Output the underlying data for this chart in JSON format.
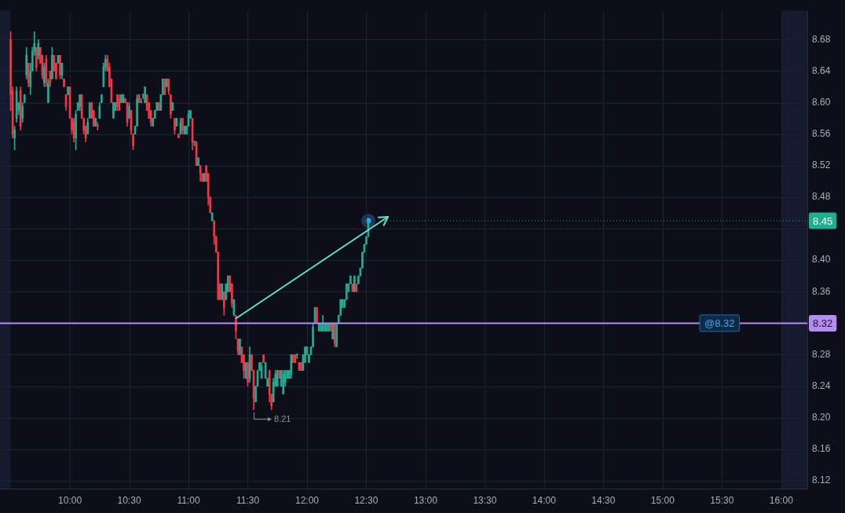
{
  "chart_data": {
    "type": "candlestick",
    "x": [
      9.5,
      9.5167,
      9.5333,
      9.55,
      9.5667,
      9.5833,
      9.6,
      9.6167,
      9.6333,
      9.65,
      9.6667,
      9.6833,
      9.7,
      9.7167,
      9.7333,
      9.75,
      9.7667,
      9.7833,
      9.8,
      9.8167,
      9.8333,
      9.85,
      9.8667,
      9.8833,
      9.9,
      9.9167,
      9.9333,
      9.95,
      9.9667,
      9.9833,
      10,
      10.0167,
      10.0333,
      10.05,
      10.0667,
      10.0833,
      10.1,
      10.1167,
      10.1333,
      10.15,
      10.1667,
      10.1833,
      10.2,
      10.2167,
      10.2333,
      10.25,
      10.2667,
      10.2833,
      10.3,
      10.3167,
      10.3333,
      10.35,
      10.3667,
      10.3833,
      10.4,
      10.4167,
      10.4333,
      10.45,
      10.4667,
      10.4833,
      10.5,
      10.5167,
      10.5333,
      10.55,
      10.5667,
      10.5833,
      10.6,
      10.6167,
      10.6333,
      10.65,
      10.6667,
      10.6833,
      10.7,
      10.7167,
      10.7333,
      10.75,
      10.7667,
      10.7833,
      10.8,
      10.8167,
      10.8333,
      10.85,
      10.8667,
      10.8833,
      10.9,
      10.9167,
      10.9333,
      10.95,
      10.9667,
      10.9833,
      11,
      11.0167,
      11.0333,
      11.05,
      11.0667,
      11.0833,
      11.1,
      11.1167,
      11.1333,
      11.15,
      11.1667,
      11.1833,
      11.2,
      11.2167,
      11.2333,
      11.25,
      11.2667,
      11.2833,
      11.3,
      11.3167,
      11.3333,
      11.35,
      11.3667,
      11.3833,
      11.4,
      11.4167,
      11.4333,
      11.45,
      11.4667,
      11.4833,
      11.5,
      11.5167,
      11.5333,
      11.55,
      11.5667,
      11.5833,
      11.6,
      11.6167,
      11.6333,
      11.65,
      11.6667,
      11.6833,
      11.7,
      11.7167,
      11.7333,
      11.75,
      11.7667,
      11.7833,
      11.8,
      11.8167,
      11.8333,
      11.85,
      11.8667,
      11.8833,
      11.9,
      11.9167,
      11.9333,
      11.95,
      11.9667,
      11.9833,
      12,
      12.0167,
      12.0333,
      12.05,
      12.0667,
      12.0833,
      12.1,
      12.1167,
      12.1333,
      12.15,
      12.1667,
      12.1833,
      12.2,
      12.2167,
      12.2333,
      12.25,
      12.2667,
      12.2833,
      12.3,
      12.3167,
      12.3333,
      12.35,
      12.3667,
      12.3833,
      12.4,
      12.4167,
      12.4333,
      12.45,
      12.4667,
      12.4833,
      12.5,
      12.5167
    ],
    "ohlc": [
      [
        8.68,
        8.69,
        8.59,
        8.61
      ],
      [
        8.615,
        8.62,
        8.555,
        8.56
      ],
      [
        8.555,
        8.57,
        8.54,
        8.565
      ],
      [
        8.58,
        8.62,
        8.575,
        8.615
      ],
      [
        8.59,
        8.6,
        8.585,
        8.6
      ],
      [
        8.615,
        8.62,
        8.565,
        8.57
      ],
      [
        8.58,
        8.6,
        8.575,
        8.595
      ],
      [
        8.6,
        8.61,
        8.6,
        8.61
      ],
      [
        8.635,
        8.67,
        8.63,
        8.66
      ],
      [
        8.65,
        8.65,
        8.62,
        8.625
      ],
      [
        8.62,
        8.65,
        8.61,
        8.64
      ],
      [
        8.64,
        8.67,
        8.64,
        8.665
      ],
      [
        8.665,
        8.69,
        8.66,
        8.675
      ],
      [
        8.67,
        8.67,
        8.64,
        8.645
      ],
      [
        8.66,
        8.68,
        8.655,
        8.675
      ],
      [
        8.67,
        8.67,
        8.65,
        8.65
      ],
      [
        8.66,
        8.66,
        8.63,
        8.635
      ],
      [
        8.625,
        8.65,
        8.62,
        8.645
      ],
      [
        8.655,
        8.66,
        8.62,
        8.625
      ],
      [
        8.6,
        8.63,
        8.6,
        8.625
      ],
      [
        8.64,
        8.64,
        8.62,
        8.625
      ],
      [
        8.63,
        8.67,
        8.63,
        8.66
      ],
      [
        8.66,
        8.66,
        8.64,
        8.64
      ],
      [
        8.65,
        8.65,
        8.63,
        8.63
      ],
      [
        8.65,
        8.66,
        8.65,
        8.66
      ],
      [
        8.66,
        8.66,
        8.63,
        8.635
      ],
      [
        8.635,
        8.65,
        8.63,
        8.65
      ],
      [
        8.63,
        8.63,
        8.62,
        8.62
      ],
      [
        8.61,
        8.61,
        8.59,
        8.595
      ],
      [
        8.61,
        8.62,
        8.61,
        8.62
      ],
      [
        8.62,
        8.62,
        8.58,
        8.58
      ],
      [
        8.58,
        8.58,
        8.56,
        8.565
      ],
      [
        8.575,
        8.58,
        8.55,
        8.555
      ],
      [
        8.555,
        8.59,
        8.54,
        8.585
      ],
      [
        8.59,
        8.6,
        8.59,
        8.6
      ],
      [
        8.595,
        8.61,
        8.59,
        8.61
      ],
      [
        8.61,
        8.61,
        8.58,
        8.58
      ],
      [
        8.58,
        8.58,
        8.56,
        8.565
      ],
      [
        8.57,
        8.57,
        8.55,
        8.555
      ],
      [
        8.56,
        8.58,
        8.56,
        8.575
      ],
      [
        8.58,
        8.6,
        8.58,
        8.6
      ],
      [
        8.6,
        8.6,
        8.58,
        8.58
      ],
      [
        8.59,
        8.59,
        8.57,
        8.57
      ],
      [
        8.57,
        8.58,
        8.57,
        8.58
      ],
      [
        8.57,
        8.575,
        8.565,
        8.57
      ],
      [
        8.58,
        8.6,
        8.58,
        8.595
      ],
      [
        8.6,
        8.61,
        8.6,
        8.61
      ],
      [
        8.62,
        8.65,
        8.62,
        8.645
      ],
      [
        8.645,
        8.66,
        8.64,
        8.655
      ],
      [
        8.655,
        8.66,
        8.64,
        8.64
      ],
      [
        8.645,
        8.65,
        8.62,
        8.62
      ],
      [
        8.63,
        8.63,
        8.6,
        8.6
      ],
      [
        8.58,
        8.6,
        8.58,
        8.6
      ],
      [
        8.59,
        8.6,
        8.59,
        8.6
      ],
      [
        8.61,
        8.61,
        8.59,
        8.595
      ],
      [
        8.605,
        8.61,
        8.59,
        8.59
      ],
      [
        8.6,
        8.61,
        8.6,
        8.61
      ],
      [
        8.6,
        8.61,
        8.6,
        8.61
      ],
      [
        8.605,
        8.605,
        8.6,
        8.6
      ],
      [
        8.6,
        8.6,
        8.57,
        8.575
      ],
      [
        8.58,
        8.6,
        8.58,
        8.595
      ],
      [
        8.59,
        8.59,
        8.56,
        8.565
      ],
      [
        8.56,
        8.56,
        8.54,
        8.545
      ],
      [
        8.56,
        8.57,
        8.56,
        8.57
      ],
      [
        8.57,
        8.61,
        8.57,
        8.605
      ],
      [
        8.61,
        8.61,
        8.6,
        8.6
      ],
      [
        8.6,
        8.605,
        8.6,
        8.6
      ],
      [
        8.61,
        8.61,
        8.605,
        8.61
      ],
      [
        8.6,
        8.62,
        8.6,
        8.62
      ],
      [
        8.61,
        8.61,
        8.59,
        8.59
      ],
      [
        8.6,
        8.6,
        8.58,
        8.58
      ],
      [
        8.59,
        8.59,
        8.57,
        8.575
      ],
      [
        8.57,
        8.58,
        8.57,
        8.58
      ],
      [
        8.58,
        8.59,
        8.58,
        8.59
      ],
      [
        8.59,
        8.6,
        8.59,
        8.6
      ],
      [
        8.6,
        8.6,
        8.59,
        8.59
      ],
      [
        8.59,
        8.61,
        8.59,
        8.61
      ],
      [
        8.61,
        8.63,
        8.61,
        8.63
      ],
      [
        8.63,
        8.63,
        8.61,
        8.61
      ],
      [
        8.62,
        8.63,
        8.62,
        8.63
      ],
      [
        8.63,
        8.63,
        8.61,
        8.615
      ],
      [
        8.61,
        8.61,
        8.58,
        8.585
      ],
      [
        8.59,
        8.6,
        8.59,
        8.6
      ],
      [
        8.58,
        8.58,
        8.56,
        8.565
      ],
      [
        8.57,
        8.58,
        8.57,
        8.58
      ],
      [
        8.56,
        8.56,
        8.555,
        8.555
      ],
      [
        8.56,
        8.58,
        8.56,
        8.575
      ],
      [
        8.58,
        8.58,
        8.56,
        8.565
      ],
      [
        8.56,
        8.57,
        8.56,
        8.57
      ],
      [
        8.56,
        8.57,
        8.56,
        8.57
      ],
      [
        8.57,
        8.59,
        8.57,
        8.585
      ],
      [
        8.58,
        8.59,
        8.58,
        8.59
      ],
      [
        8.58,
        8.58,
        8.54,
        8.55
      ],
      [
        8.55,
        8.55,
        8.545,
        8.55
      ],
      [
        8.55,
        8.55,
        8.52,
        8.52
      ],
      [
        8.52,
        8.53,
        8.52,
        8.53
      ],
      [
        8.52,
        8.52,
        8.5,
        8.51
      ],
      [
        8.51,
        8.51,
        8.5,
        8.5
      ],
      [
        8.5,
        8.51,
        8.5,
        8.51
      ],
      [
        8.52,
        8.52,
        8.5,
        8.5
      ],
      [
        8.51,
        8.51,
        8.47,
        8.48
      ],
      [
        8.48,
        8.48,
        8.46,
        8.46
      ],
      [
        8.45,
        8.46,
        8.45,
        8.46
      ],
      [
        8.45,
        8.45,
        8.42,
        8.43
      ],
      [
        8.43,
        8.43,
        8.41,
        8.41
      ],
      [
        8.41,
        8.41,
        8.35,
        8.35
      ],
      [
        8.37,
        8.37,
        8.35,
        8.35
      ],
      [
        8.35,
        8.37,
        8.35,
        8.37
      ],
      [
        8.36,
        8.36,
        8.33,
        8.34
      ],
      [
        8.35,
        8.37,
        8.35,
        8.37
      ],
      [
        8.36,
        8.38,
        8.36,
        8.38
      ],
      [
        8.38,
        8.38,
        8.36,
        8.36
      ],
      [
        8.37,
        8.37,
        8.34,
        8.345
      ],
      [
        8.33,
        8.35,
        8.33,
        8.35
      ],
      [
        8.33,
        8.33,
        8.3,
        8.31
      ],
      [
        8.3,
        8.3,
        8.28,
        8.285
      ],
      [
        8.28,
        8.3,
        8.28,
        8.3
      ],
      [
        8.29,
        8.29,
        8.27,
        8.27
      ],
      [
        8.28,
        8.28,
        8.25,
        8.26
      ],
      [
        8.25,
        8.27,
        8.25,
        8.27
      ],
      [
        8.27,
        8.27,
        8.24,
        8.245
      ],
      [
        8.25,
        8.29,
        8.245,
        8.28
      ],
      [
        8.28,
        8.28,
        8.26,
        8.26
      ],
      [
        8.26,
        8.26,
        8.21,
        8.225
      ],
      [
        8.22,
        8.24,
        8.22,
        8.24
      ],
      [
        8.24,
        8.26,
        8.24,
        8.26
      ],
      [
        8.26,
        8.27,
        8.26,
        8.27
      ],
      [
        8.25,
        8.27,
        8.25,
        8.265
      ],
      [
        8.28,
        8.28,
        8.27,
        8.27
      ],
      [
        8.25,
        8.27,
        8.25,
        8.27
      ],
      [
        8.24,
        8.25,
        8.24,
        8.25
      ],
      [
        8.26,
        8.26,
        8.22,
        8.23
      ],
      [
        8.23,
        8.23,
        8.21,
        8.215
      ],
      [
        8.22,
        8.25,
        8.22,
        8.245
      ],
      [
        8.24,
        8.26,
        8.24,
        8.255
      ],
      [
        8.24,
        8.26,
        8.24,
        8.26
      ],
      [
        8.26,
        8.26,
        8.25,
        8.25
      ],
      [
        8.24,
        8.26,
        8.24,
        8.26
      ],
      [
        8.23,
        8.26,
        8.23,
        8.255
      ],
      [
        8.245,
        8.26,
        8.24,
        8.26
      ],
      [
        8.25,
        8.26,
        8.25,
        8.26
      ],
      [
        8.25,
        8.26,
        8.25,
        8.26
      ],
      [
        8.255,
        8.28,
        8.25,
        8.28
      ],
      [
        8.28,
        8.28,
        8.27,
        8.27
      ],
      [
        8.28,
        8.28,
        8.27,
        8.27
      ],
      [
        8.28,
        8.28,
        8.275,
        8.28
      ],
      [
        8.27,
        8.27,
        8.26,
        8.26
      ],
      [
        8.27,
        8.27,
        8.26,
        8.26
      ],
      [
        8.26,
        8.28,
        8.26,
        8.28
      ],
      [
        8.27,
        8.29,
        8.27,
        8.29
      ],
      [
        8.28,
        8.29,
        8.28,
        8.29
      ],
      [
        8.27,
        8.28,
        8.27,
        8.28
      ],
      [
        8.28,
        8.29,
        8.28,
        8.29
      ],
      [
        8.29,
        8.32,
        8.29,
        8.315
      ],
      [
        8.32,
        8.34,
        8.32,
        8.34
      ],
      [
        8.34,
        8.34,
        8.32,
        8.32
      ],
      [
        8.31,
        8.32,
        8.31,
        8.32
      ],
      [
        8.31,
        8.32,
        8.31,
        8.32
      ],
      [
        8.31,
        8.33,
        8.31,
        8.32
      ],
      [
        8.31,
        8.32,
        8.31,
        8.32
      ],
      [
        8.31,
        8.32,
        8.31,
        8.32
      ],
      [
        8.31,
        8.32,
        8.31,
        8.32
      ],
      [
        8.32,
        8.32,
        8.31,
        8.31
      ],
      [
        8.3,
        8.32,
        8.3,
        8.32
      ],
      [
        8.32,
        8.32,
        8.29,
        8.295
      ],
      [
        8.29,
        8.32,
        8.29,
        8.32
      ],
      [
        8.32,
        8.33,
        8.32,
        8.33
      ],
      [
        8.33,
        8.35,
        8.33,
        8.35
      ],
      [
        8.34,
        8.35,
        8.34,
        8.35
      ],
      [
        8.34,
        8.35,
        8.34,
        8.35
      ],
      [
        8.35,
        8.37,
        8.35,
        8.37
      ],
      [
        8.36,
        8.37,
        8.36,
        8.37
      ],
      [
        8.37,
        8.38,
        8.37,
        8.38
      ],
      [
        8.37,
        8.37,
        8.36,
        8.36
      ],
      [
        8.36,
        8.38,
        8.36,
        8.38
      ],
      [
        8.37,
        8.37,
        8.36,
        8.36
      ],
      [
        8.37,
        8.38,
        8.37,
        8.38
      ],
      [
        8.38,
        8.39,
        8.38,
        8.39
      ],
      [
        8.39,
        8.41,
        8.39,
        8.41
      ],
      [
        8.41,
        8.42,
        8.41,
        8.42
      ],
      [
        8.42,
        8.43,
        8.42,
        8.43
      ],
      [
        8.43,
        8.45,
        8.43,
        8.45
      ]
    ],
    "colors": [
      "#f23645",
      "#f23645",
      "#22ab94",
      "#22ab94",
      "#22ab94",
      "#f23645",
      "#22ab94",
      "#22ab94",
      "#22ab94",
      "#f23645",
      "#22ab94",
      "#22ab94",
      "#22ab94",
      "#f23645",
      "#22ab94",
      "#f23645",
      "#f23645",
      "#22ab94",
      "#f23645",
      "#22ab94",
      "#f23645",
      "#22ab94",
      "#f23645",
      "#f23645",
      "#22ab94",
      "#f23645",
      "#22ab94",
      "#f23645",
      "#f23645",
      "#22ab94",
      "#f23645",
      "#f23645",
      "#f23645",
      "#22ab94",
      "#22ab94",
      "#22ab94",
      "#f23645",
      "#f23645",
      "#f23645",
      "#22ab94",
      "#22ab94",
      "#f23645",
      "#f23645",
      "#22ab94",
      "#f23645",
      "#22ab94",
      "#22ab94",
      "#22ab94",
      "#22ab94",
      "#f23645",
      "#f23645",
      "#f23645",
      "#22ab94",
      "#22ab94",
      "#f23645",
      "#f23645",
      "#22ab94",
      "#22ab94",
      "#f23645",
      "#f23645",
      "#22ab94",
      "#f23645",
      "#f23645",
      "#22ab94",
      "#22ab94",
      "#f23645",
      "#22ab94",
      "#22ab94",
      "#22ab94",
      "#f23645",
      "#f23645",
      "#f23645",
      "#22ab94",
      "#22ab94",
      "#22ab94",
      "#f23645",
      "#22ab94",
      "#22ab94",
      "#f23645",
      "#22ab94",
      "#f23645",
      "#f23645",
      "#22ab94",
      "#f23645",
      "#22ab94",
      "#f23645",
      "#22ab94",
      "#f23645",
      "#22ab94",
      "#22ab94",
      "#22ab94",
      "#22ab94",
      "#f23645",
      "#22ab94",
      "#f23645",
      "#22ab94",
      "#f23645",
      "#f23645",
      "#22ab94",
      "#f23645",
      "#f23645",
      "#f23645",
      "#22ab94",
      "#f23645",
      "#f23645",
      "#f23645",
      "#f23645",
      "#22ab94",
      "#f23645",
      "#22ab94",
      "#22ab94",
      "#f23645",
      "#f23645",
      "#22ab94",
      "#f23645",
      "#f23645",
      "#22ab94",
      "#f23645",
      "#f23645",
      "#22ab94",
      "#f23645",
      "#22ab94",
      "#f23645",
      "#f23645",
      "#22ab94",
      "#22ab94",
      "#22ab94",
      "#22ab94",
      "#f23645",
      "#22ab94",
      "#22ab94",
      "#f23645",
      "#f23645",
      "#22ab94",
      "#22ab94",
      "#22ab94",
      "#f23645",
      "#22ab94",
      "#22ab94",
      "#22ab94",
      "#22ab94",
      "#22ab94",
      "#22ab94",
      "#f23645",
      "#f23645",
      "#22ab94",
      "#f23645",
      "#f23645",
      "#22ab94",
      "#22ab94",
      "#22ab94",
      "#22ab94",
      "#22ab94",
      "#22ab94",
      "#22ab94",
      "#f23645",
      "#22ab94",
      "#22ab94",
      "#22ab94",
      "#22ab94",
      "#22ab94",
      "#22ab94",
      "#f23645",
      "#22ab94",
      "#f23645",
      "#22ab94",
      "#22ab94",
      "#22ab94",
      "#22ab94",
      "#22ab94",
      "#22ab94",
      "#22ab94",
      "#22ab94",
      "#f23645",
      "#22ab94",
      "#f23645",
      "#22ab94",
      "#22ab94",
      "#22ab94",
      "#22ab94",
      "#22ab94",
      "#22ab94"
    ],
    "xlim": [
      9.41,
      16.22
    ],
    "xticks": [
      {
        "value": 10,
        "label": "10:00"
      },
      {
        "value": 10.5,
        "label": "10:30"
      },
      {
        "value": 11,
        "label": "11:00"
      },
      {
        "value": 11.5,
        "label": "11:30"
      },
      {
        "value": 12,
        "label": "12:00"
      },
      {
        "value": 12.5,
        "label": "12:30"
      },
      {
        "value": 13,
        "label": "13:00"
      },
      {
        "value": 13.5,
        "label": "13:30"
      },
      {
        "value": 14,
        "label": "14:00"
      },
      {
        "value": 14.5,
        "label": "14:30"
      },
      {
        "value": 15,
        "label": "15:00"
      },
      {
        "value": 15.5,
        "label": "15:30"
      },
      {
        "value": 16,
        "label": "16:00"
      }
    ],
    "ylim": [
      8.11,
      8.717
    ],
    "yticks": [
      8.12,
      8.16,
      {
        "value": 8.2,
        "label": "8.20"
      },
      8.24,
      8.28,
      {
        "value": 8.32,
        "label": null
      },
      8.36,
      {
        "value": 8.4,
        "label": "8.40"
      },
      {
        "value": 8.44,
        "label": null
      },
      8.48,
      8.52,
      8.56,
      {
        "value": 8.6,
        "label": "8.60"
      },
      8.64,
      8.68
    ],
    "grid": true,
    "bands": [
      {
        "axis": "x",
        "from": 9.41,
        "to": 9.5,
        "color": "#161a2e"
      },
      {
        "axis": "x",
        "from": 16,
        "to": 16.22,
        "color": "#161a2e"
      }
    ],
    "ref_lines": [
      {
        "axis": "y",
        "value": 8.32,
        "label": "8.32",
        "color": "#b58cf2"
      },
      {
        "axis": "y",
        "value": 8.45,
        "label": "8.45",
        "color": "#1fae8f",
        "line_style": "dotted"
      }
    ],
    "annotations": [
      {
        "text": "8.21",
        "x": 11.55,
        "y": 8.21
      },
      {
        "text": "@8.32",
        "x": 15.48,
        "y": 8.32
      }
    ]
  }
}
